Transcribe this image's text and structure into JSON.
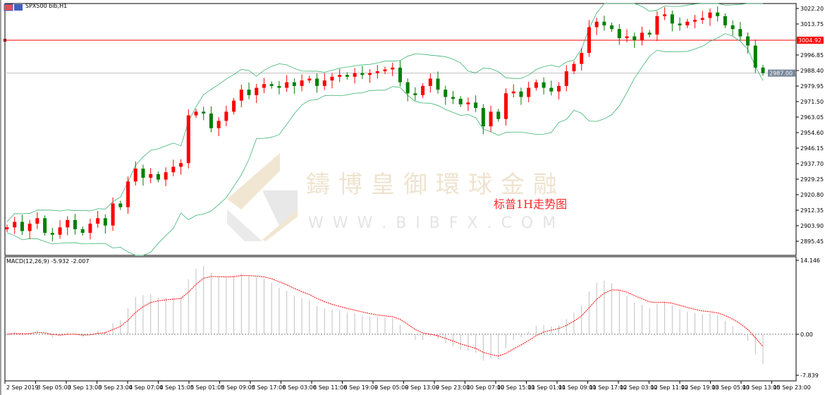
{
  "window": {
    "title": "SPX500 bib,H1",
    "icon": "chart-window-icon"
  },
  "price_axis": {
    "ticks": [
      "3022.20",
      "3013.75",
      "2996.85",
      "2988.40",
      "2979.95",
      "2971.50",
      "2963.05",
      "2954.60",
      "2946.15",
      "2937.70",
      "2929.25",
      "2920.80",
      "2912.35",
      "2903.90",
      "2895.45"
    ],
    "range": [
      2895.45,
      3022.2
    ],
    "horizontal_line": {
      "value": "3004.92",
      "color": "#ff0000"
    },
    "current_price": {
      "value": "2987.00",
      "color": "#778899"
    }
  },
  "annotation": "标普1H走势图",
  "watermark": {
    "cn": "鑄博皇御環球金融",
    "en": "W W W . B I B F X . C O M"
  },
  "colors": {
    "bull": "#ff0000",
    "bear": "#008000",
    "bands": "#3cb371",
    "macd_hist": "#c0c0c0",
    "macd_signal": "#ff0000"
  },
  "indicator": {
    "label": "MACD(12,26,9) -5.932 -2.007",
    "max": "14.146",
    "zero": "0.00",
    "min": "-7.839"
  },
  "time_axis": [
    "2 Sep 2019",
    "3 Sep 05:00",
    "3 Sep 13:00",
    "3 Sep 23:00",
    "4 Sep 07:00",
    "4 Sep 15:00",
    "5 Sep 01:00",
    "5 Sep 09:00",
    "5 Sep 17:00",
    "6 Sep 03:00",
    "6 Sep 11:00",
    "6 Sep 19:00",
    "9 Sep 05:00",
    "9 Sep 13:00",
    "9 Sep 23:00",
    "10 Sep 07:00",
    "10 Sep 15:00",
    "11 Sep 01:00",
    "11 Sep 09:00",
    "11 Sep 17:00",
    "12 Sep 03:00",
    "12 Sep 11:00",
    "12 Sep 19:00",
    "13 Sep 05:00",
    "13 Sep 13:00",
    "15 Sep 23:00"
  ],
  "chart_data": {
    "type": "candlestick",
    "symbol": "SPX500 bib",
    "timeframe": "H1",
    "ylim": [
      2895.45,
      3022.2
    ],
    "closes": [
      2903,
      2906,
      2901,
      2905,
      2908,
      2900,
      2899,
      2903,
      2907,
      2902,
      2900,
      2905,
      2908,
      2904,
      2916,
      2914,
      2928,
      2935,
      2930,
      2932,
      2929,
      2933,
      2936,
      2938,
      2964,
      2966,
      2965,
      2957,
      2961,
      2966,
      2972,
      2978,
      2975,
      2979,
      2981,
      2980,
      2979,
      2982,
      2980,
      2983,
      2984,
      2980,
      2983,
      2985,
      2986,
      2985,
      2987,
      2986,
      2987,
      2988,
      2989,
      2990,
      2982,
      2976,
      2975,
      2980,
      2984,
      2978,
      2974,
      2973,
      2970,
      2971,
      2968,
      2958,
      2966,
      2962,
      2976,
      2977,
      2974,
      2979,
      2982,
      2979,
      2977,
      2980,
      2988,
      2992,
      2998,
      3012,
      3015,
      3013,
      3011,
      3006,
      3007,
      3005,
      3009,
      3008,
      3018,
      3019,
      3014,
      3013,
      3015,
      3016,
      3017,
      3020,
      3018,
      3013,
      3011,
      3007,
      3002,
      2990,
      2987
    ],
    "overlays": [
      "Bollinger Bands"
    ],
    "indicator": {
      "name": "MACD",
      "params": [
        12,
        26,
        9
      ],
      "ylim": [
        -7.839,
        14.146
      ]
    }
  }
}
